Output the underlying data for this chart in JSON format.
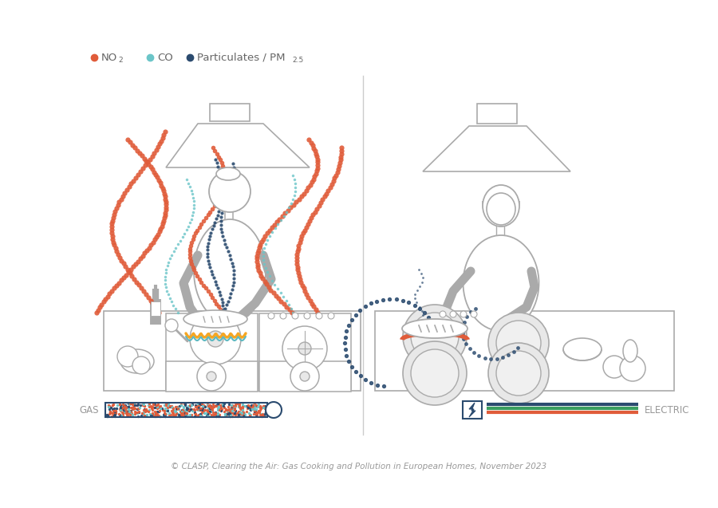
{
  "no2_color": "#E05C3A",
  "co_color": "#6BC5C8",
  "pm_color": "#2B4B6F",
  "gray": "#AAAAAA",
  "gray_dark": "#999999",
  "gray_light": "#E8E8E8",
  "background": "#FFFFFF",
  "gas_label": "GAS",
  "electric_label": "ELECTRIC",
  "electric_line_colors": [
    "#2B4B6F",
    "#3A9E5F",
    "#E05C3A"
  ],
  "copyright_text": "© CLASP, Clearing the Air: Gas Cooking and Pollution in European Homes, November 2023"
}
